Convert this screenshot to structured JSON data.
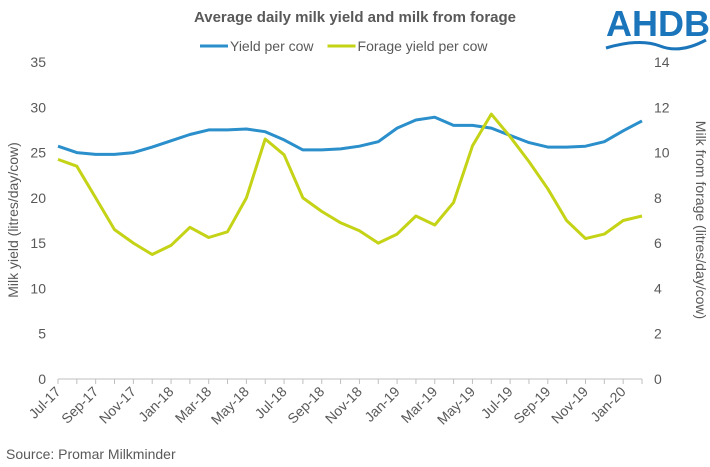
{
  "logo": "AHDB",
  "chart_data": {
    "type": "line",
    "title": "Average daily milk yield and milk from forage",
    "ylabel": "Milk yield (litres/day/cow)",
    "y2label": "Milk  from forage (litres/day/cow)",
    "source": "Source:  Promar Milkminder",
    "categories": [
      "Jul-17",
      null,
      "Sep-17",
      null,
      "Nov-17",
      null,
      "Jan-18",
      null,
      "Mar-18",
      null,
      "May-18",
      null,
      "Jul-18",
      null,
      "Sep-18",
      null,
      "Nov-18",
      null,
      "Jan-19",
      null,
      "Mar-19",
      null,
      "May-19",
      null,
      "Jul-19",
      null,
      "Sep-19",
      null,
      "Nov-19",
      null,
      "Jan-20",
      null
    ],
    "series": [
      {
        "name": "Yield per cow",
        "color": "#2a8fcb",
        "values": [
          25.7,
          25.0,
          24.8,
          24.8,
          25.0,
          25.6,
          26.3,
          27.0,
          27.5,
          27.5,
          27.6,
          27.3,
          26.4,
          25.3,
          25.3,
          25.4,
          25.7,
          26.2,
          27.7,
          28.6,
          28.9,
          28.0,
          28.0,
          27.7,
          26.9,
          26.1,
          25.6,
          25.6,
          25.7,
          26.2,
          27.4,
          28.5
        ]
      },
      {
        "name": "Forage yield per cow",
        "color": "#c5d317",
        "axis": "y2",
        "values": [
          9.7,
          9.4,
          8.0,
          6.6,
          6.0,
          5.5,
          5.9,
          6.7,
          6.25,
          6.5,
          8.0,
          10.6,
          9.9,
          8.0,
          7.4,
          6.9,
          6.55,
          6.0,
          6.4,
          7.2,
          6.8,
          7.8,
          10.3,
          11.7,
          10.7,
          9.6,
          8.4,
          7.0,
          6.2,
          6.4,
          7.0,
          7.2
        ]
      }
    ],
    "ylim": [
      0,
      35
    ],
    "yticks": [
      0,
      5,
      10,
      15,
      20,
      25,
      30,
      35
    ],
    "y2lim": [
      0,
      14
    ],
    "y2ticks": [
      0,
      2,
      4,
      6,
      8,
      10,
      12,
      14
    ],
    "legend": "top"
  }
}
